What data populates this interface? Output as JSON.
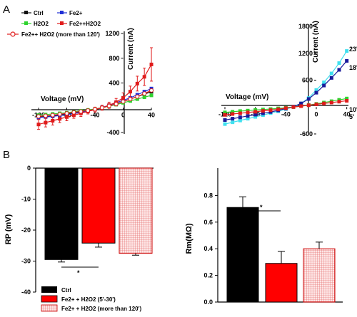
{
  "panels": {
    "a": "A",
    "b": "B"
  },
  "colors": {
    "ctrl": "#111111",
    "fe2": "#1f2fd6",
    "h2o2": "#2fd32f",
    "fe_h2o2": "#e01b1b",
    "fe_h2o2_long": "#e01b1b",
    "cyan": "#3fe0ef",
    "navy": "#1a1a9a",
    "pink": "#f7cfcf"
  },
  "chart_data": [
    {
      "type": "line",
      "xlabel": "Voltage (mV)",
      "ylabel": "Current (nA)",
      "xlim": [
        -120,
        45
      ],
      "ylim": [
        -400,
        1200
      ],
      "xticks": [
        -120,
        -80,
        -40,
        0,
        40
      ],
      "yticks": [
        -400,
        0,
        400,
        800,
        1200
      ],
      "legend": [
        "Ctrl",
        "Fe2+",
        "H2O2",
        "Fe2++H2O2",
        "Fe2++ H2O2 (more than 120')"
      ],
      "series": [
        {
          "name": "Ctrl",
          "marker": "square-filled",
          "x": [
            -120,
            -110,
            -100,
            -90,
            -80,
            -70,
            -60,
            -50,
            -40,
            -30,
            -20,
            -10,
            0,
            10,
            20,
            30,
            40
          ],
          "y": [
            -150,
            -140,
            -130,
            -115,
            -100,
            -85,
            -70,
            -50,
            -30,
            0,
            30,
            60,
            100,
            140,
            180,
            220,
            260
          ]
        },
        {
          "name": "Fe2+",
          "marker": "square-filled",
          "x": [
            -120,
            -110,
            -100,
            -90,
            -80,
            -70,
            -60,
            -50,
            -40,
            -30,
            -20,
            -10,
            0,
            10,
            20,
            30,
            40
          ],
          "y": [
            -160,
            -150,
            -140,
            -125,
            -110,
            -95,
            -75,
            -50,
            -25,
            5,
            40,
            80,
            120,
            160,
            210,
            260,
            310
          ]
        },
        {
          "name": "H2O2",
          "marker": "square-filled",
          "x": [
            -120,
            -110,
            -100,
            -90,
            -80,
            -70,
            -60,
            -50,
            -40,
            -30,
            -20,
            -10,
            0,
            10,
            20,
            30,
            40
          ],
          "y": [
            -120,
            -110,
            -100,
            -90,
            -80,
            -65,
            -50,
            -35,
            -20,
            0,
            25,
            50,
            80,
            110,
            140,
            170,
            200
          ]
        },
        {
          "name": "Fe2++H2O2",
          "marker": "square-filled",
          "x": [
            -120,
            -110,
            -100,
            -90,
            -80,
            -70,
            -60,
            -50,
            -40,
            -30,
            -20,
            -10,
            0,
            10,
            20,
            30,
            40
          ],
          "y": [
            -270,
            -240,
            -210,
            -180,
            -150,
            -120,
            -90,
            -60,
            -30,
            0,
            40,
            90,
            160,
            260,
            390,
            500,
            700
          ],
          "err": [
            80,
            70,
            70,
            60,
            60,
            50,
            50,
            40,
            40,
            40,
            50,
            60,
            80,
            90,
            120,
            140,
            270
          ]
        },
        {
          "name": "Fe2++ H2O2 (more than 120')",
          "marker": "circle-open",
          "x": [
            -120,
            -110,
            -100,
            -90,
            -80,
            -70,
            -60,
            -50,
            -40,
            -30,
            -20,
            -10,
            0,
            10,
            20,
            30,
            40
          ],
          "y": [
            -140,
            -130,
            -120,
            -105,
            -90,
            -75,
            -60,
            -45,
            -25,
            0,
            30,
            60,
            100,
            140,
            180,
            230,
            280
          ]
        }
      ]
    },
    {
      "type": "line",
      "xlabel": "Voltage (mV)",
      "ylabel": "Current (nA)",
      "xlim": [
        -120,
        45
      ],
      "ylim": [
        -600,
        1800
      ],
      "xticks": [
        -120,
        -80,
        -40,
        0,
        40
      ],
      "yticks": [
        -600,
        0,
        600,
        1200,
        1800
      ],
      "series": [
        {
          "name": "23'",
          "marker": "square-filled",
          "x": [
            -120,
            -110,
            -100,
            -90,
            -80,
            -70,
            -60,
            -50,
            -40,
            -30,
            -20,
            -10,
            0,
            10,
            20,
            30,
            40
          ],
          "y": [
            -380,
            -340,
            -300,
            -260,
            -220,
            -180,
            -135,
            -95,
            -45,
            0,
            80,
            200,
            380,
            550,
            750,
            980,
            1250
          ]
        },
        {
          "name": "18'",
          "marker": "square-filled",
          "x": [
            -120,
            -110,
            -100,
            -90,
            -80,
            -70,
            -60,
            -50,
            -40,
            -30,
            -20,
            -10,
            0,
            10,
            20,
            30,
            40
          ],
          "y": [
            -290,
            -260,
            -230,
            -200,
            -170,
            -140,
            -110,
            -75,
            -35,
            10,
            80,
            180,
            320,
            480,
            650,
            830,
            1030
          ]
        },
        {
          "name": "10'",
          "marker": "square-filled",
          "x": [
            -120,
            -110,
            -100,
            -90,
            -80,
            -70,
            -60,
            -50,
            -40,
            -30,
            -20,
            -10,
            0,
            10,
            20,
            30,
            40
          ],
          "y": [
            -120,
            -105,
            -90,
            -80,
            -65,
            -55,
            -45,
            -30,
            -15,
            0,
            20,
            45,
            70,
            100,
            130,
            160,
            190
          ]
        },
        {
          "name": "5'",
          "marker": "square-filled",
          "x": [
            -120,
            -110,
            -100,
            -90,
            -80,
            -70,
            -60,
            -50,
            -40,
            -30,
            -20,
            -10,
            0,
            10,
            20,
            30,
            40
          ],
          "y": [
            -175,
            -155,
            -140,
            -120,
            -105,
            -85,
            -70,
            -50,
            -25,
            0,
            20,
            40,
            60,
            80,
            100,
            120,
            140
          ]
        }
      ]
    },
    {
      "type": "bar",
      "ylabel": "RP (mV)",
      "ylim": [
        -40,
        0
      ],
      "yticks": [
        0,
        -10,
        -20,
        -30,
        -40
      ],
      "categories": [
        "Ctrl",
        "Fe2+ + H2O2 (5'-30')",
        "Fe2+ + H2O2 (more than 120')"
      ],
      "values": [
        -29.5,
        -24.2,
        -27.5
      ],
      "errors": [
        0.8,
        1.3,
        0.6
      ],
      "annotation": "*"
    },
    {
      "type": "bar",
      "ylabel": "Rm(MΩ)",
      "ylim": [
        0,
        1.0
      ],
      "yticks": [
        0.0,
        0.2,
        0.4,
        0.6,
        0.8
      ],
      "categories": [
        "Ctrl",
        "Fe2+ + H2O2 (5'-30')",
        "Fe2+ + H2O2 (more than 120')"
      ],
      "values": [
        0.71,
        0.29,
        0.4
      ],
      "errors": [
        0.08,
        0.09,
        0.05
      ],
      "annotation": "*"
    }
  ]
}
